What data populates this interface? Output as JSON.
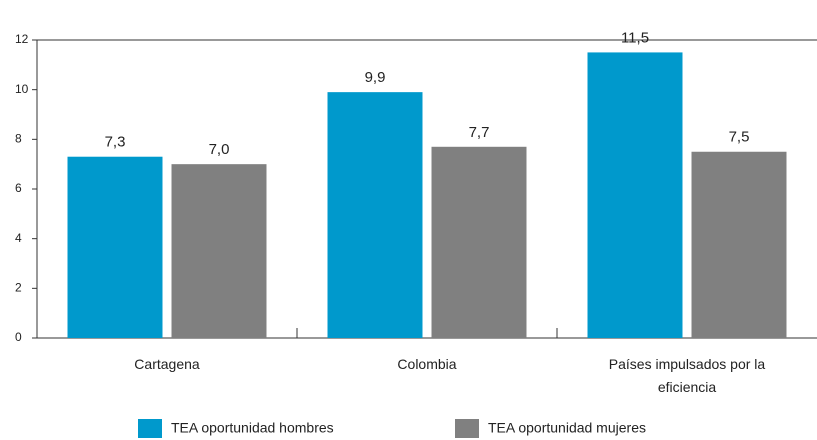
{
  "chart_data": {
    "type": "bar",
    "categories": [
      "Cartagena",
      "Colombia",
      "Países impulsados por la eficiencia"
    ],
    "series": [
      {
        "name": "TEA oportunidad hombres",
        "color": "#0099cc",
        "values": [
          7.3,
          9.9,
          11.5
        ],
        "value_labels": [
          "7,3",
          "9,9",
          "11,5"
        ]
      },
      {
        "name": "TEA oportunidad mujeres",
        "color": "#808080",
        "values": [
          7.0,
          7.7,
          7.5
        ],
        "value_labels": [
          "7,0",
          "7,7",
          "7,5"
        ]
      }
    ],
    "ylim": [
      0,
      12
    ],
    "yticks": [
      0,
      2,
      4,
      6,
      8,
      10,
      12
    ],
    "legend": "bottom"
  }
}
